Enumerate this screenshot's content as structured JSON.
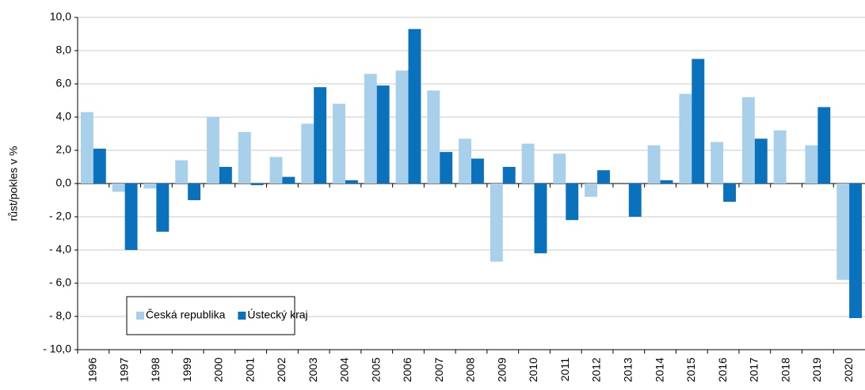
{
  "chart_data": {
    "type": "bar",
    "y_label": "růst/pokles v %",
    "categories": [
      "1996",
      "1997",
      "1998",
      "1999",
      "2000",
      "2001",
      "2002",
      "2003",
      "2004",
      "2005",
      "2006",
      "2007",
      "2008",
      "2009",
      "2010",
      "2011",
      "2012",
      "2013",
      "2014",
      "2015",
      "2016",
      "2017",
      "2018",
      "2019",
      "2020"
    ],
    "series": [
      {
        "name": "Česká republika",
        "color": "#a9d0ea",
        "values": [
          4.3,
          -0.5,
          -0.3,
          1.4,
          4.0,
          3.1,
          1.6,
          3.6,
          4.8,
          6.6,
          6.8,
          5.6,
          2.7,
          -4.7,
          2.4,
          1.8,
          -0.8,
          0.0,
          2.3,
          5.4,
          2.5,
          5.2,
          3.2,
          2.3,
          -5.8
        ]
      },
      {
        "name": "Ústecký kraj",
        "color": "#0a72bd",
        "values": [
          2.1,
          -4.0,
          -2.9,
          -1.0,
          1.0,
          -0.1,
          0.4,
          5.8,
          0.2,
          5.9,
          9.3,
          1.9,
          1.5,
          1.0,
          -4.2,
          -2.2,
          0.8,
          -2.0,
          0.2,
          7.5,
          -1.1,
          2.7,
          0.0,
          4.6,
          -8.1
        ]
      }
    ],
    "ylim": [
      -10,
      10
    ],
    "yticks": [
      {
        "value": -10,
        "label": "- 10,0"
      },
      {
        "value": -8,
        "label": "- 8,0"
      },
      {
        "value": -6,
        "label": "- 6,0"
      },
      {
        "value": -4,
        "label": "- 4,0"
      },
      {
        "value": -2,
        "label": "- 2,0"
      },
      {
        "value": 0,
        "label": "0,0"
      },
      {
        "value": 2,
        "label": "2,0"
      },
      {
        "value": 4,
        "label": "4,0"
      },
      {
        "value": 6,
        "label": "6,0"
      },
      {
        "value": 8,
        "label": "8,0"
      },
      {
        "value": 10,
        "label": "10,0"
      }
    ],
    "grid": true,
    "legend": "lower left"
  }
}
